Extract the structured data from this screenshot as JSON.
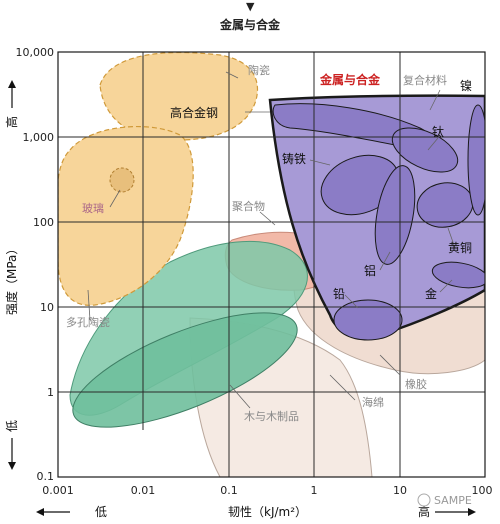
{
  "header": {
    "arrow": "▼",
    "title": "金属与合金"
  },
  "axes": {
    "x_ticks": [
      "0.001",
      "0.01",
      "0.1",
      "1",
      "10",
      "100"
    ],
    "y_ticks": [
      "10,000",
      "1,000",
      "100",
      "10",
      "1",
      "0.1"
    ],
    "x_label": "韧性（kJ/m²）",
    "x_low": "低",
    "x_high": "高",
    "y_label": "强度（MPa）",
    "y_low": "低",
    "y_high": "高"
  },
  "labels": {
    "ceramics": "陶瓷",
    "metals": "金属与合金",
    "composites": "复合材料",
    "nickel": "镍",
    "high_alloy_steel": "高合金钢",
    "titanium": "钛",
    "cast_iron": "铸铁",
    "glass": "玻璃",
    "polymers": "聚合物",
    "brass": "黄铜",
    "aluminium": "铝",
    "lead": "铅",
    "gold": "金",
    "porous_ceramics": "多孔陶瓷",
    "rubber": "橡胶",
    "sponge": "海绵",
    "wood": "木与木制品"
  },
  "watermark": "SAMPE",
  "colors": {
    "ceramics": "#f7d59a",
    "metals": "#a79ad6",
    "metals_dark": "#8b7cc6",
    "wood": "#6fbf9c",
    "polymers": "#f2b9a8",
    "rubber": "#f0ddd2",
    "title_red": "#cc2222"
  }
}
